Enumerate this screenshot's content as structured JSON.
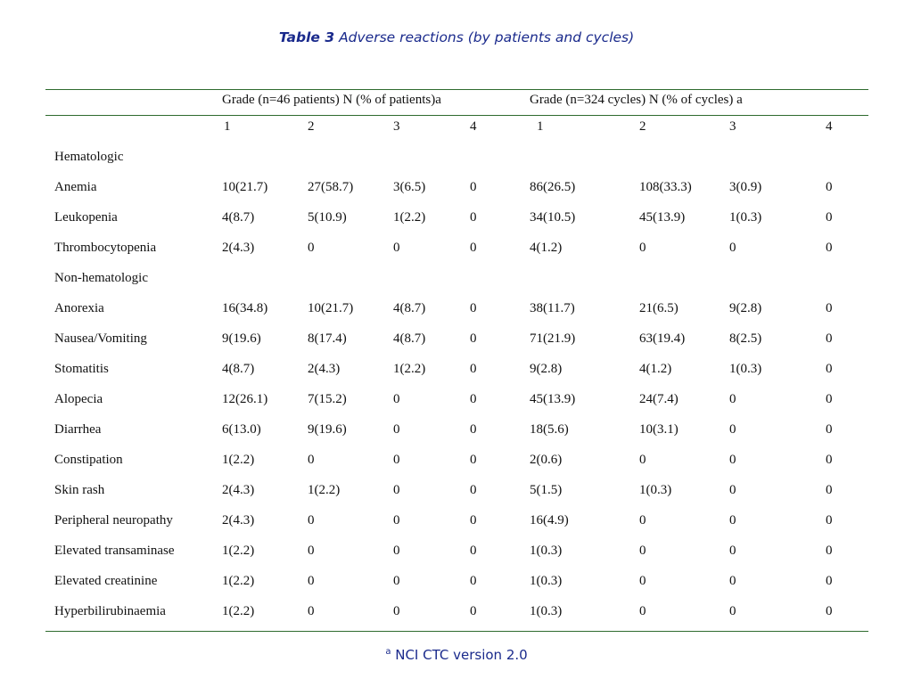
{
  "title": {
    "label": "Table 3",
    "text": "Adverse reactions (by patients and cycles)"
  },
  "header": {
    "patients_group": "Grade (n=46 patients) N (% of patients)a",
    "cycles_group": "Grade (n=324 cycles) N (% of cycles) a",
    "grades": [
      "1",
      "2",
      "3",
      "4"
    ]
  },
  "rows": [
    {
      "type": "section",
      "label": "Hematologic"
    },
    {
      "type": "data",
      "label": "Anemia",
      "patients": [
        "10(21.7)",
        "27(58.7)",
        "3(6.5)",
        "0"
      ],
      "cycles": [
        "86(26.5)",
        "108(33.3)",
        "3(0.9)",
        "0"
      ]
    },
    {
      "type": "data",
      "label": "Leukopenia",
      "patients": [
        "4(8.7)",
        "5(10.9)",
        "1(2.2)",
        "0"
      ],
      "cycles": [
        "34(10.5)",
        "45(13.9)",
        "1(0.3)",
        "0"
      ]
    },
    {
      "type": "data",
      "label": "Thrombocytopenia",
      "patients": [
        "2(4.3)",
        "0",
        "0",
        "0"
      ],
      "cycles": [
        "4(1.2)",
        "0",
        "0",
        "0"
      ]
    },
    {
      "type": "section",
      "label": "Non-hematologic"
    },
    {
      "type": "data",
      "label": "Anorexia",
      "patients": [
        "16(34.8)",
        "10(21.7)",
        "4(8.7)",
        "0"
      ],
      "cycles": [
        "38(11.7)",
        "21(6.5)",
        "9(2.8)",
        "0"
      ]
    },
    {
      "type": "data",
      "label": "Nausea/Vomiting",
      "patients": [
        "9(19.6)",
        "8(17.4)",
        "4(8.7)",
        "0"
      ],
      "cycles": [
        "71(21.9)",
        "63(19.4)",
        "8(2.5)",
        "0"
      ]
    },
    {
      "type": "data",
      "label": "Stomatitis",
      "patients": [
        "4(8.7)",
        "2(4.3)",
        "1(2.2)",
        "0"
      ],
      "cycles": [
        "9(2.8)",
        "4(1.2)",
        "1(0.3)",
        "0"
      ]
    },
    {
      "type": "data",
      "label": "Alopecia",
      "patients": [
        "12(26.1)",
        "7(15.2)",
        "0",
        "0"
      ],
      "cycles": [
        "45(13.9)",
        "24(7.4)",
        "0",
        "0"
      ]
    },
    {
      "type": "data",
      "label": "Diarrhea",
      "patients": [
        "6(13.0)",
        "9(19.6)",
        "0",
        "0"
      ],
      "cycles": [
        "18(5.6)",
        "10(3.1)",
        "0",
        "0"
      ]
    },
    {
      "type": "data",
      "label": "Constipation",
      "patients": [
        "1(2.2)",
        "0",
        "0",
        "0"
      ],
      "cycles": [
        "2(0.6)",
        "0",
        "0",
        "0"
      ]
    },
    {
      "type": "data",
      "label": "Skin rash",
      "patients": [
        "2(4.3)",
        "1(2.2)",
        "0",
        "0"
      ],
      "cycles": [
        "5(1.5)",
        "1(0.3)",
        "0",
        "0"
      ]
    },
    {
      "type": "data",
      "label": "Peripheral neuropathy",
      "patients": [
        "2(4.3)",
        "0",
        "0",
        "0"
      ],
      "cycles": [
        "16(4.9)",
        "0",
        "0",
        "0"
      ]
    },
    {
      "type": "data",
      "label": "Elevated transaminase",
      "patients": [
        "1(2.2)",
        "0",
        "0",
        "0"
      ],
      "cycles": [
        "1(0.3)",
        "0",
        "0",
        "0"
      ]
    },
    {
      "type": "data",
      "label": "Elevated creatinine",
      "patients": [
        "1(2.2)",
        "0",
        "0",
        "0"
      ],
      "cycles": [
        "1(0.3)",
        "0",
        "0",
        "0"
      ]
    },
    {
      "type": "data",
      "label": "Hyperbilirubinaemia",
      "patients": [
        "1(2.2)",
        "0",
        "0",
        "0"
      ],
      "cycles": [
        "1(0.3)",
        "0",
        "0",
        "0"
      ]
    }
  ],
  "footnote": {
    "mark": "a",
    "text": "NCI CTC version 2.0"
  },
  "colors": {
    "title": "#1a2a8c",
    "rule": "#2e6b2e"
  }
}
